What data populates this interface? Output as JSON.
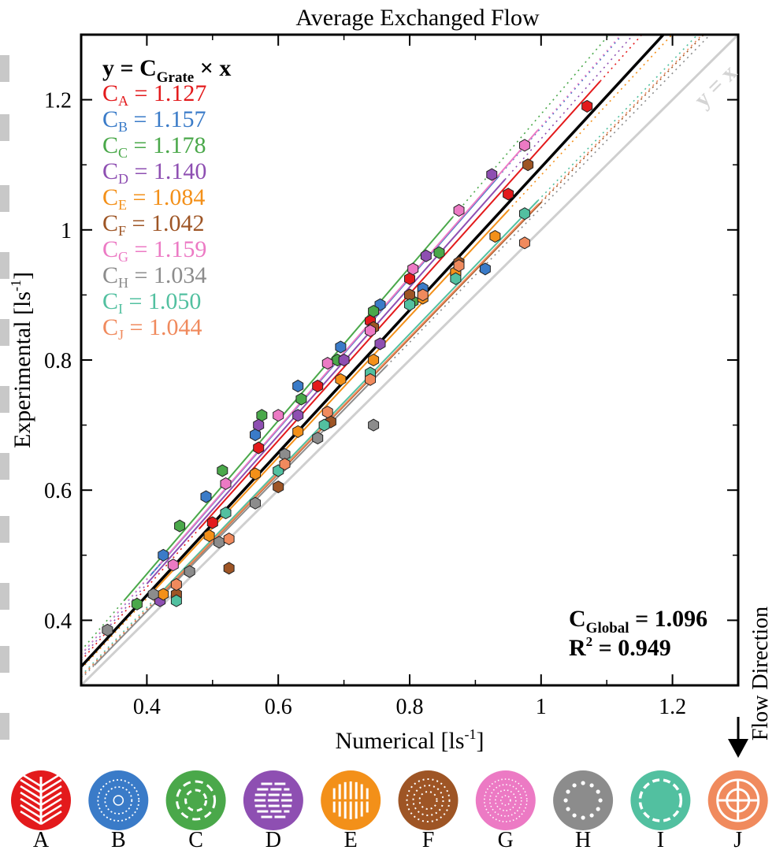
{
  "chart_data": {
    "type": "scatter",
    "title": "Average Exchanged Flow",
    "xlabel_main": "Numerical [ls",
    "xlabel_sup": "-1",
    "xlabel_end": "]",
    "ylabel_main": "Experimental [ls",
    "ylabel_sup": "-1",
    "ylabel_end": "]",
    "xlim": [
      0.3,
      1.3
    ],
    "ylim": [
      0.3,
      1.3
    ],
    "xticks": [
      "0.4",
      "0.6",
      "0.8",
      "1",
      "1.2"
    ],
    "yticks": [
      "0.4",
      "0.6",
      "0.8",
      "1",
      "1.2"
    ],
    "xtick_values": [
      0.4,
      0.6,
      0.8,
      1.0,
      1.2
    ],
    "ytick_values": [
      0.4,
      0.6,
      0.8,
      1.0,
      1.2
    ],
    "legend_placement": "top-left",
    "formula": {
      "prefix": "y = C",
      "sub": "Grate",
      "suffix": " × x"
    },
    "identity_label": "y = x",
    "global_fit": {
      "c_main": "C",
      "c_sub": "Global",
      "c_value": " = 1.096",
      "r_main": "R",
      "r_sup": "2",
      "r_value": " = 0.949",
      "slope": 1.096
    },
    "series": [
      {
        "name": "A",
        "sub": "A",
        "label_value": " = 1.127",
        "slope": 1.127,
        "color": "#e31a1c",
        "marker": "hexagon",
        "x": [
          0.5,
          0.57,
          0.66,
          0.74,
          0.8,
          0.87,
          0.95,
          1.07
        ],
        "y": [
          0.55,
          0.665,
          0.76,
          0.86,
          0.925,
          0.935,
          1.055,
          1.19
        ]
      },
      {
        "name": "B",
        "sub": "B",
        "label_value": " = 1.157",
        "slope": 1.157,
        "color": "#3a7bc8",
        "marker": "hexagon",
        "x": [
          0.425,
          0.49,
          0.565,
          0.63,
          0.695,
          0.755,
          0.82,
          0.915
        ],
        "y": [
          0.5,
          0.59,
          0.685,
          0.76,
          0.82,
          0.885,
          0.91,
          0.94
        ]
      },
      {
        "name": "C",
        "sub": "C",
        "label_value": " = 1.178",
        "slope": 1.178,
        "color": "#4aa84a",
        "marker": "hexagon",
        "x": [
          0.385,
          0.45,
          0.515,
          0.575,
          0.635,
          0.69,
          0.745,
          0.805,
          0.845
        ],
        "y": [
          0.425,
          0.545,
          0.63,
          0.715,
          0.74,
          0.8,
          0.875,
          0.89,
          0.965
        ]
      },
      {
        "name": "D",
        "sub": "D",
        "label_value": " = 1.140",
        "slope": 1.14,
        "color": "#8e4fb2",
        "marker": "hexagon",
        "x": [
          0.42,
          0.57,
          0.63,
          0.7,
          0.755,
          0.825,
          0.925
        ],
        "y": [
          0.43,
          0.7,
          0.715,
          0.8,
          0.825,
          0.96,
          1.085
        ]
      },
      {
        "name": "E",
        "sub": "E",
        "label_value": " = 1.084",
        "slope": 1.084,
        "color": "#f39019",
        "marker": "hexagon",
        "x": [
          0.425,
          0.495,
          0.565,
          0.63,
          0.695,
          0.745,
          0.82,
          0.87,
          0.93
        ],
        "y": [
          0.44,
          0.53,
          0.625,
          0.69,
          0.77,
          0.8,
          0.895,
          0.935,
          0.99
        ]
      },
      {
        "name": "F",
        "sub": "F",
        "label_value": " = 1.042",
        "slope": 1.042,
        "color": "#9e5525",
        "marker": "hexagon",
        "x": [
          0.445,
          0.525,
          0.6,
          0.68,
          0.745,
          0.8,
          0.875,
          0.98
        ],
        "y": [
          0.44,
          0.48,
          0.605,
          0.705,
          0.85,
          0.9,
          0.95,
          1.1
        ]
      },
      {
        "name": "G",
        "sub": "G",
        "label_value": " = 1.159",
        "slope": 1.159,
        "color": "#ec7ac4",
        "marker": "hexagon",
        "x": [
          0.44,
          0.52,
          0.6,
          0.675,
          0.74,
          0.805,
          0.875,
          0.975
        ],
        "y": [
          0.485,
          0.61,
          0.715,
          0.795,
          0.845,
          0.94,
          1.03,
          1.13
        ]
      },
      {
        "name": "H",
        "sub": "H",
        "label_value": " = 1.034",
        "slope": 1.034,
        "color": "#8c8c8c",
        "marker": "hexagon",
        "x": [
          0.34,
          0.41,
          0.465,
          0.51,
          0.565,
          0.61,
          0.66,
          0.745
        ],
        "y": [
          0.385,
          0.44,
          0.475,
          0.52,
          0.58,
          0.655,
          0.68,
          0.7
        ]
      },
      {
        "name": "I",
        "sub": "I",
        "label_value": " = 1.050",
        "slope": 1.05,
        "color": "#52c0a0",
        "marker": "hexagon",
        "x": [
          0.445,
          0.52,
          0.6,
          0.67,
          0.74,
          0.8,
          0.87,
          0.975
        ],
        "y": [
          0.43,
          0.565,
          0.63,
          0.7,
          0.78,
          0.885,
          0.925,
          1.025
        ]
      },
      {
        "name": "J",
        "sub": "J",
        "label_value": " = 1.044",
        "slope": 1.044,
        "color": "#f08a5d",
        "marker": "hexagon",
        "x": [
          0.445,
          0.525,
          0.61,
          0.675,
          0.74,
          0.82,
          0.875,
          0.975
        ],
        "y": [
          0.455,
          0.525,
          0.64,
          0.72,
          0.77,
          0.9,
          0.945,
          0.98
        ]
      }
    ]
  },
  "flow_direction_label": "Flow Direction",
  "grates": [
    {
      "label": "A",
      "icon": "grate-a-icon",
      "color": "#e31a1c"
    },
    {
      "label": "B",
      "icon": "grate-b-icon",
      "color": "#3a7bc8"
    },
    {
      "label": "C",
      "icon": "grate-c-icon",
      "color": "#4aa84a"
    },
    {
      "label": "D",
      "icon": "grate-d-icon",
      "color": "#8e4fb2"
    },
    {
      "label": "E",
      "icon": "grate-e-icon",
      "color": "#f39019"
    },
    {
      "label": "F",
      "icon": "grate-f-icon",
      "color": "#9e5525"
    },
    {
      "label": "G",
      "icon": "grate-g-icon",
      "color": "#ec7ac4"
    },
    {
      "label": "H",
      "icon": "grate-h-icon",
      "color": "#8c8c8c"
    },
    {
      "label": "I",
      "icon": "grate-i-icon",
      "color": "#52c0a0"
    },
    {
      "label": "J",
      "icon": "grate-j-icon",
      "color": "#f08a5d"
    }
  ]
}
